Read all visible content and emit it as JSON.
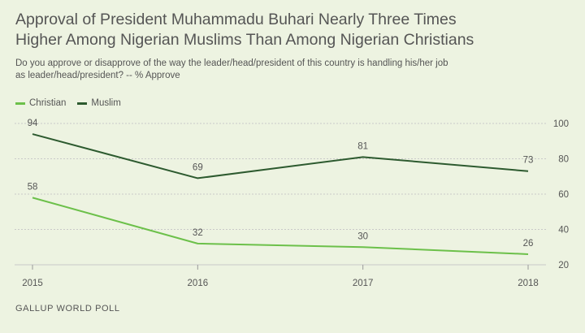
{
  "header": {
    "title_line1": "Approval of President Muhammadu Buhari Nearly Three Times",
    "title_line2": "Higher Among Nigerian Muslims Than Among Nigerian Christians",
    "subtitle_line1": "Do you approve or disapprove of the way the leader/head/president of this country is handling his/her job",
    "subtitle_line2": "as leader/head/president? -- % Approve"
  },
  "footer": {
    "source": "GALLUP WORLD POLL"
  },
  "colors": {
    "christian": "#6cc04a",
    "muslim": "#2d5a2f",
    "grid": "#c9c9c9",
    "background": "#edf3e1"
  },
  "chart_data": {
    "type": "line",
    "title": "Approval of President Muhammadu Buhari Nearly Three Times Higher Among Nigerian Muslims Than Among Nigerian Christians",
    "categories": [
      "2015",
      "2016",
      "2017",
      "2018"
    ],
    "series": [
      {
        "name": "Christian",
        "values": [
          58,
          32,
          30,
          26
        ]
      },
      {
        "name": "Muslim",
        "values": [
          94,
          69,
          81,
          73
        ]
      }
    ],
    "y_ticks": [
      20,
      40,
      60,
      80,
      100
    ],
    "ylim": [
      20,
      100
    ],
    "y_axis_side": "right",
    "grid": true,
    "legend_position": "top-left",
    "data_labels": true
  }
}
